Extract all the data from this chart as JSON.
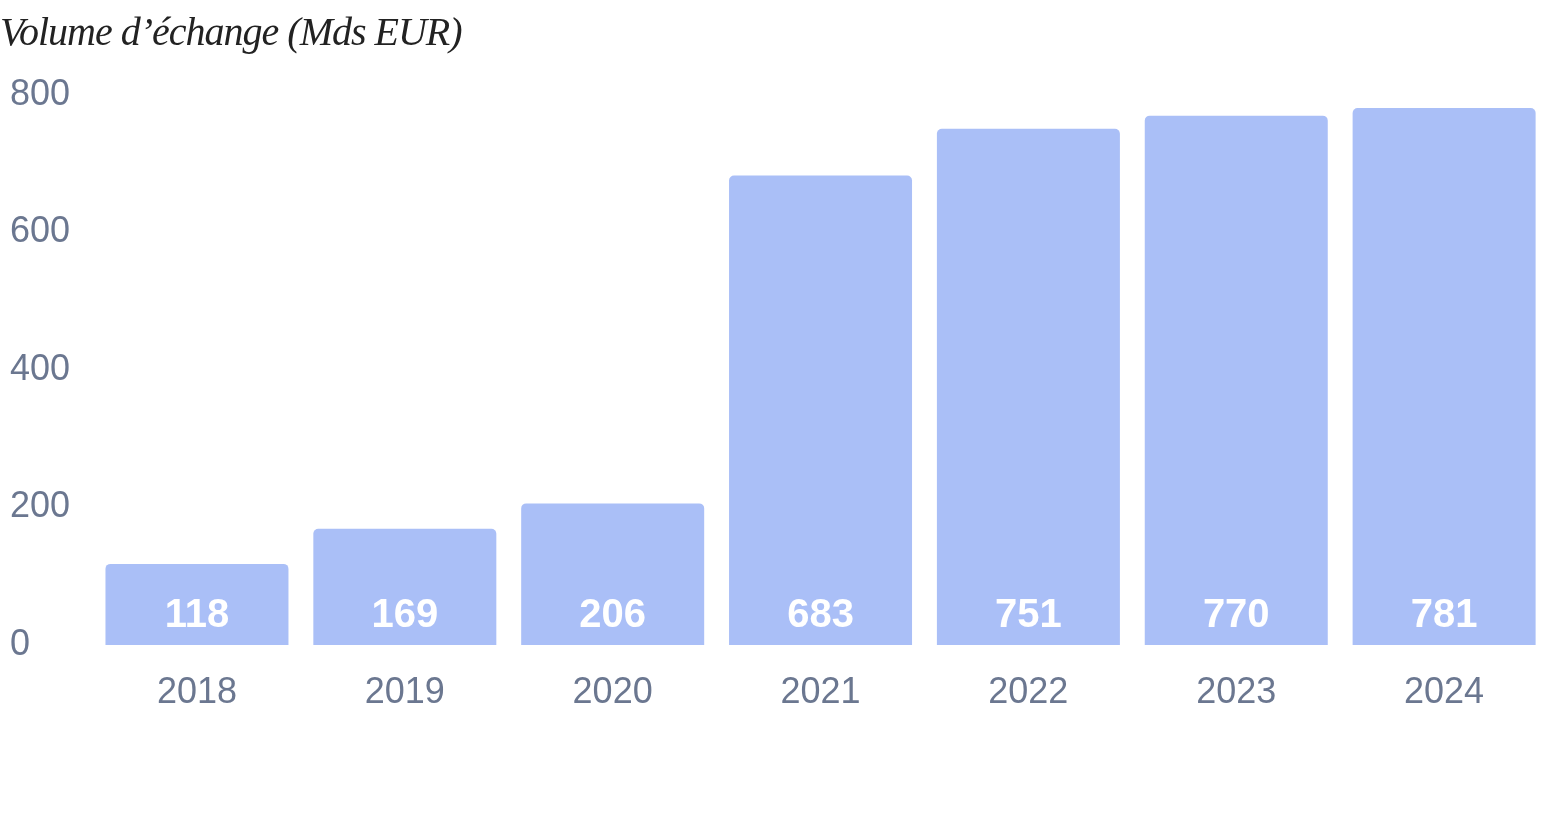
{
  "chart_data": {
    "type": "bar",
    "title": "Volume d’échange (Mds EUR)",
    "categories": [
      "2018",
      "2019",
      "2020",
      "2021",
      "2022",
      "2023",
      "2024"
    ],
    "values": [
      118,
      169,
      206,
      683,
      751,
      770,
      781
    ],
    "color": "#aabff7",
    "ylim": [
      0,
      800
    ],
    "yticks": [
      0,
      200,
      400,
      600,
      800
    ],
    "grid": false,
    "legend": false,
    "data_labels": true
  }
}
